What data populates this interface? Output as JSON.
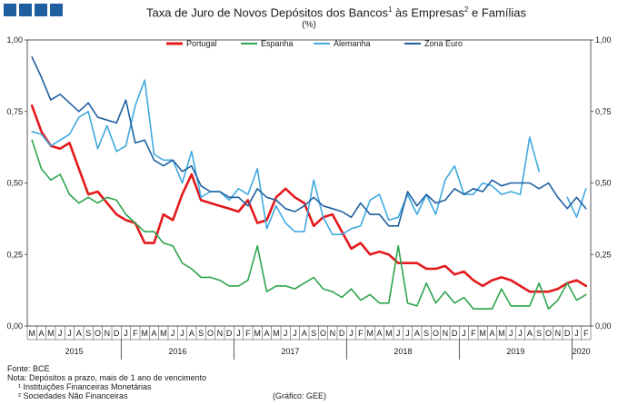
{
  "header": {
    "title_prefix": "Taxa de Juro de Novos Depósitos dos Bancos",
    "title_sup1": "1",
    "title_mid": " às Empresas",
    "title_sup2": "2",
    "title_suffix": " e Famílias",
    "unit": "(%)"
  },
  "footer": {
    "source": "Fonte: BCE",
    "note": "Nota: Depósitos a prazo, mais de 1 ano de vencimento",
    "note1": "¹ Instituições Financeiras Monetárias",
    "note2": "² Sociedades Não Financeiras",
    "credit": "(Gráfico: GEE)"
  },
  "chart_data": {
    "type": "line",
    "title": "Taxa de Juro de Novos Depósitos dos Bancos¹ às Empresas² e Famílias",
    "ylabel": "(%)",
    "ylim": [
      0,
      1
    ],
    "yticks": [
      "0,00",
      "0,25",
      "0,50",
      "0,75",
      "1,00"
    ],
    "grid": false,
    "legend_position": "top",
    "x_months": [
      "M",
      "A",
      "M",
      "J",
      "J",
      "A",
      "S",
      "O",
      "N",
      "D",
      "J",
      "F",
      "M",
      "A",
      "M",
      "J",
      "J",
      "A",
      "S",
      "O",
      "N",
      "D",
      "J",
      "F",
      "M",
      "A",
      "M",
      "J",
      "J",
      "A",
      "S",
      "O",
      "N",
      "D",
      "J",
      "F",
      "M",
      "A",
      "M",
      "J",
      "J",
      "A",
      "S",
      "O",
      "N",
      "D",
      "J",
      "F",
      "M",
      "A",
      "M",
      "J",
      "J",
      "A",
      "S",
      "O",
      "N",
      "D",
      "J",
      "F"
    ],
    "x_years": [
      {
        "label": "2015",
        "start": 0,
        "end": 10
      },
      {
        "label": "2016",
        "start": 10,
        "end": 22
      },
      {
        "label": "2017",
        "start": 22,
        "end": 34
      },
      {
        "label": "2018",
        "start": 34,
        "end": 46
      },
      {
        "label": "2019",
        "start": 46,
        "end": 58
      },
      {
        "label": "2020",
        "start": 58,
        "end": 60
      }
    ],
    "series": [
      {
        "name": "Portugal",
        "color": "#e3191b",
        "width": 2.6,
        "values": [
          0.77,
          0.68,
          0.63,
          0.62,
          0.64,
          0.55,
          0.46,
          0.47,
          0.43,
          0.39,
          0.37,
          0.36,
          0.29,
          0.29,
          0.39,
          0.37,
          0.46,
          0.53,
          0.44,
          0.43,
          0.42,
          0.41,
          0.4,
          0.44,
          0.36,
          0.37,
          0.45,
          0.48,
          0.45,
          0.43,
          0.35,
          0.38,
          0.39,
          0.33,
          0.27,
          0.29,
          0.25,
          0.26,
          0.25,
          0.22,
          0.22,
          0.22,
          0.2,
          0.2,
          0.21,
          0.18,
          0.19,
          0.16,
          0.14,
          0.16,
          0.17,
          0.16,
          0.14,
          0.12,
          0.12,
          0.12,
          0.13,
          0.15,
          0.16,
          0.14
        ]
      },
      {
        "name": "Espanha",
        "color": "#2ea44f",
        "width": 1.6,
        "values": [
          0.65,
          0.55,
          0.51,
          0.53,
          0.46,
          0.43,
          0.45,
          0.43,
          0.45,
          0.44,
          0.39,
          0.36,
          0.33,
          0.33,
          0.29,
          0.28,
          0.22,
          0.2,
          0.17,
          0.17,
          0.16,
          0.14,
          0.14,
          0.16,
          0.28,
          0.12,
          0.14,
          0.14,
          0.13,
          0.15,
          0.17,
          0.13,
          0.12,
          0.1,
          0.13,
          0.09,
          0.11,
          0.08,
          0.08,
          0.28,
          0.08,
          0.07,
          0.15,
          0.08,
          0.12,
          0.08,
          0.1,
          0.06,
          0.06,
          0.06,
          0.13,
          0.07,
          0.07,
          0.07,
          0.15,
          0.06,
          0.09,
          0.15,
          0.09,
          0.11
        ]
      },
      {
        "name": "Alemanha",
        "color": "#3fa9e0",
        "width": 1.6,
        "values": [
          0.68,
          0.67,
          0.63,
          0.65,
          0.67,
          0.73,
          0.75,
          0.62,
          0.7,
          0.61,
          0.63,
          0.77,
          0.86,
          0.6,
          0.58,
          0.58,
          0.5,
          0.61,
          0.45,
          0.47,
          0.47,
          0.44,
          0.48,
          0.46,
          0.55,
          0.34,
          0.42,
          0.36,
          0.33,
          0.33,
          0.51,
          0.38,
          0.32,
          0.32,
          0.34,
          0.35,
          0.44,
          0.46,
          0.37,
          0.38,
          0.46,
          0.39,
          0.46,
          0.39,
          0.51,
          0.56,
          0.46,
          0.46,
          0.5,
          0.49,
          0.46,
          0.47,
          0.46,
          0.66,
          0.54,
          null,
          null,
          0.45,
          0.38,
          0.48
        ]
      },
      {
        "name": "Zona Euro",
        "color": "#1f5fa0",
        "width": 1.6,
        "values": [
          0.94,
          0.87,
          0.79,
          0.81,
          0.78,
          0.75,
          0.78,
          0.73,
          0.72,
          0.71,
          0.79,
          0.64,
          0.65,
          0.58,
          0.56,
          0.58,
          0.54,
          0.56,
          0.49,
          0.47,
          0.47,
          0.45,
          0.45,
          0.42,
          0.48,
          0.45,
          0.44,
          0.41,
          0.4,
          0.42,
          0.45,
          0.42,
          0.41,
          0.4,
          0.38,
          0.43,
          0.39,
          0.39,
          0.35,
          0.35,
          0.47,
          0.42,
          0.46,
          0.43,
          0.44,
          0.48,
          0.46,
          0.48,
          0.47,
          0.51,
          0.49,
          0.5,
          0.5,
          0.5,
          0.48,
          0.5,
          0.45,
          0.41,
          0.45,
          0.41
        ]
      }
    ]
  }
}
